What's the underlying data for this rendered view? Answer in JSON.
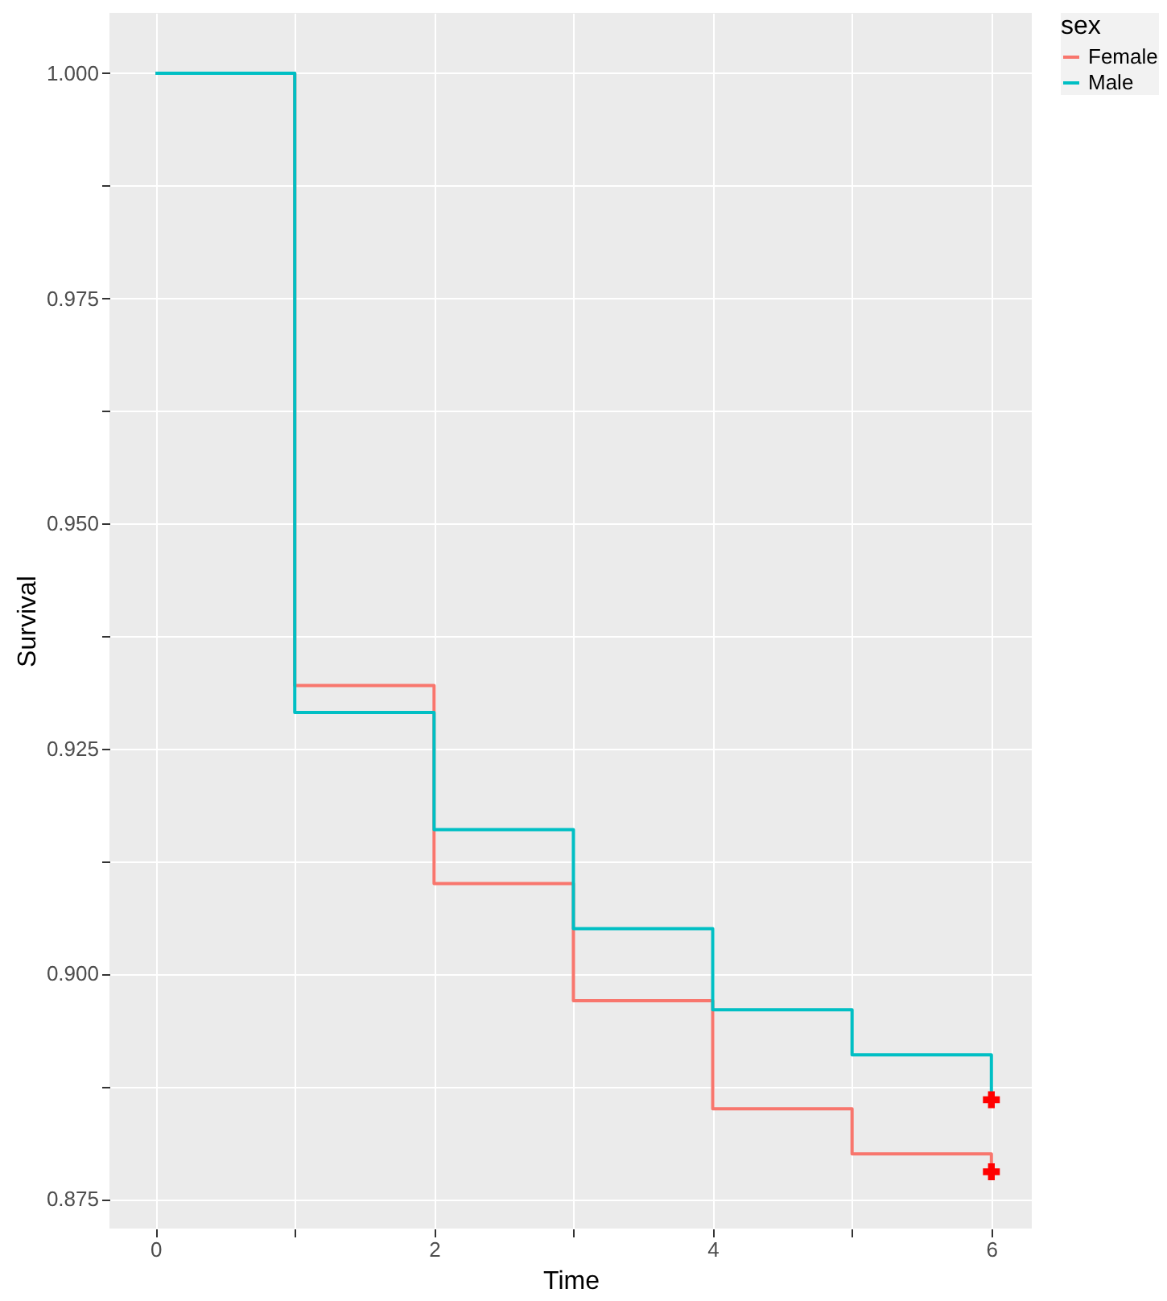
{
  "chart_data": {
    "type": "step",
    "xlabel": "Time",
    "ylabel": "Survival",
    "legend_title": "sex",
    "legend": "right",
    "grid": true,
    "xlim": [
      -0.33,
      6.29
    ],
    "xticks": [
      0,
      {
        "value": 1,
        "label": null
      },
      2,
      {
        "value": 3,
        "label": null
      },
      4,
      {
        "value": 5,
        "label": null
      },
      6
    ],
    "ylim": [
      0.8717,
      1.0067
    ],
    "yticks": [
      0.875,
      {
        "value": 0.8875,
        "label": null
      },
      {
        "value": 0.9,
        "label": "0.900"
      },
      {
        "value": 0.9125,
        "label": null
      },
      0.925,
      {
        "value": 0.9375,
        "label": null
      },
      {
        "value": 0.95,
        "label": "0.950"
      },
      {
        "value": 0.9625,
        "label": null
      },
      0.975,
      {
        "value": 0.9875,
        "label": null
      },
      {
        "value": 1.0,
        "label": "1.000"
      }
    ],
    "series": [
      {
        "name": "Female",
        "color": "#f8766d",
        "x": [
          0,
          1,
          2,
          3,
          4,
          5,
          6
        ],
        "values": [
          1.0,
          0.932,
          0.91,
          0.897,
          0.885,
          0.88,
          0.878
        ]
      },
      {
        "name": "Male",
        "color": "#00bfc4",
        "x": [
          0,
          1,
          2,
          3,
          4,
          5,
          6
        ],
        "values": [
          1.0,
          0.929,
          0.916,
          0.905,
          0.896,
          0.891,
          0.886
        ]
      },
      {
        "type": "scatter",
        "marker": "cross",
        "color": "#ff0000",
        "x": [
          6,
          6
        ],
        "values": [
          0.886,
          0.878
        ]
      }
    ]
  }
}
